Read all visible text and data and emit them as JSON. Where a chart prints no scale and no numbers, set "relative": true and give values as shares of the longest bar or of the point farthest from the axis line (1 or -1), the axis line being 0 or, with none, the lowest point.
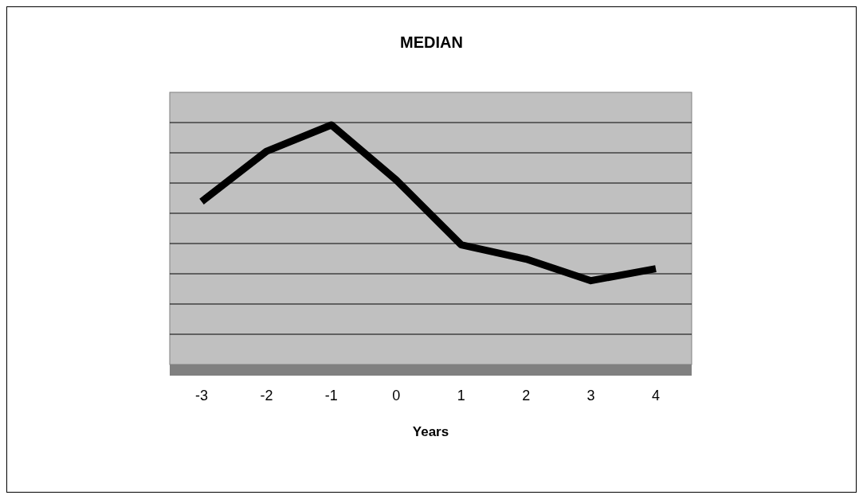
{
  "chart_data": {
    "type": "line",
    "title": "MEDIAN",
    "xlabel": "Years",
    "categories": [
      "-3",
      "-2",
      "-1",
      "0",
      "1",
      "2",
      "3",
      "4"
    ],
    "series": [
      {
        "color": "#000000",
        "values": [
          0.68,
          0.89,
          1,
          0.77,
          0.5,
          0.44,
          0.35,
          0.4
        ]
      }
    ],
    "relative": true,
    "grid": "y",
    "marker": "none",
    "line_style": "solid"
  }
}
